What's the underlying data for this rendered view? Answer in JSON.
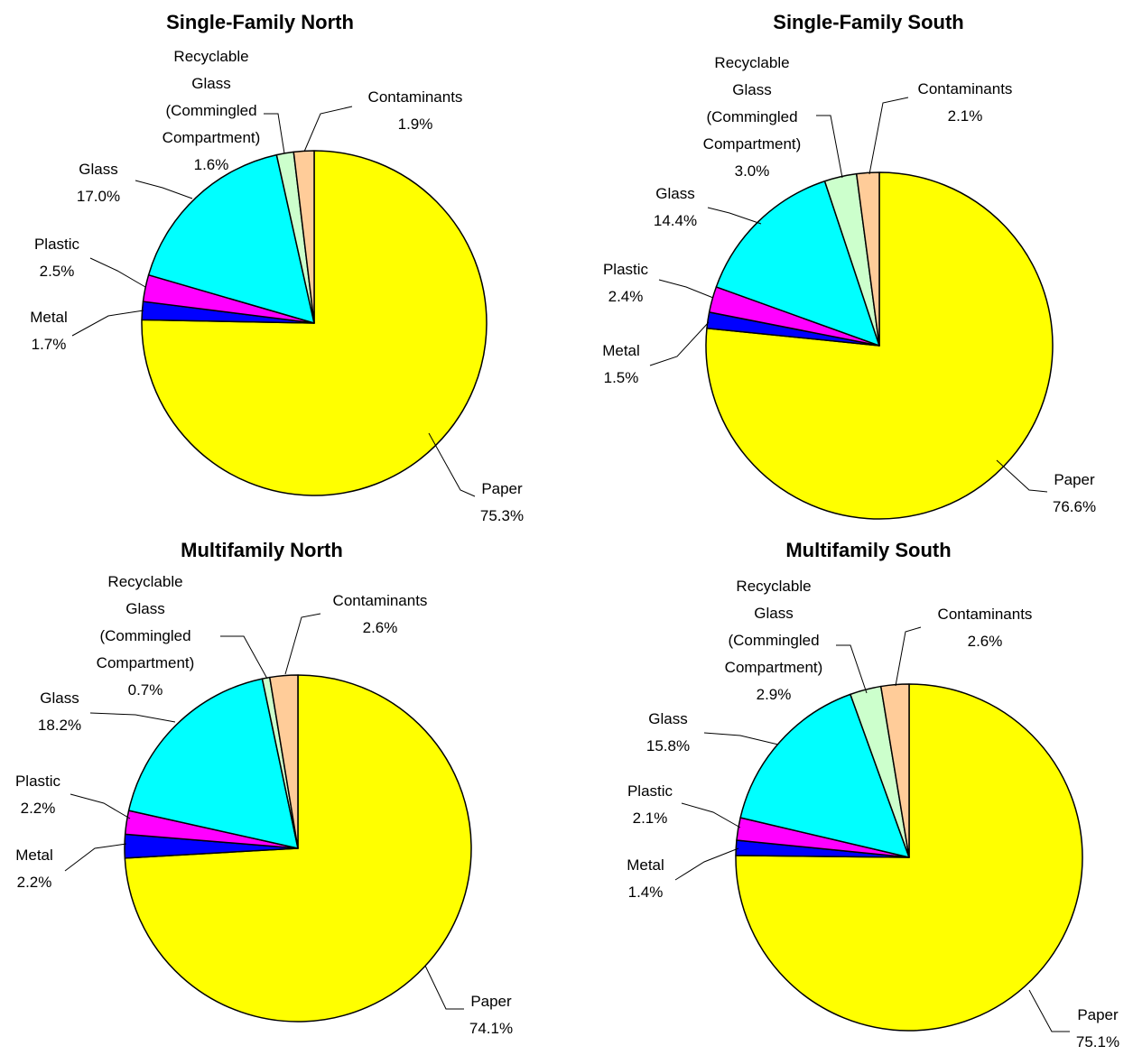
{
  "chart_data": [
    {
      "type": "pie",
      "title": "Single-Family North",
      "slices": [
        {
          "label": "Paper",
          "value": 75.3,
          "value_label": "75.3%"
        },
        {
          "label": "Metal",
          "value": 1.7,
          "value_label": "1.7%"
        },
        {
          "label": "Plastic",
          "value": 2.5,
          "value_label": "2.5%"
        },
        {
          "label": "Glass",
          "value": 17.0,
          "value_label": "17.0%"
        },
        {
          "label": "Recyclable Glass (Commingled Compartment)",
          "value": 1.6,
          "value_label": "1.6%"
        },
        {
          "label": "Contaminants",
          "value": 1.9,
          "value_label": "1.9%"
        }
      ]
    },
    {
      "type": "pie",
      "title": "Single-Family South",
      "slices": [
        {
          "label": "Paper",
          "value": 76.6,
          "value_label": "76.6%"
        },
        {
          "label": "Metal",
          "value": 1.5,
          "value_label": "1.5%"
        },
        {
          "label": "Plastic",
          "value": 2.4,
          "value_label": "2.4%"
        },
        {
          "label": "Glass",
          "value": 14.4,
          "value_label": "14.4%"
        },
        {
          "label": "Recyclable Glass (Commingled Compartment)",
          "value": 3.0,
          "value_label": "3.0%"
        },
        {
          "label": "Contaminants",
          "value": 2.1,
          "value_label": "2.1%"
        }
      ]
    },
    {
      "type": "pie",
      "title": "Multifamily North",
      "slices": [
        {
          "label": "Paper",
          "value": 74.1,
          "value_label": "74.1%"
        },
        {
          "label": "Metal",
          "value": 2.2,
          "value_label": "2.2%"
        },
        {
          "label": "Plastic",
          "value": 2.2,
          "value_label": "2.2%"
        },
        {
          "label": "Glass",
          "value": 18.2,
          "value_label": "18.2%"
        },
        {
          "label": "Recyclable Glass (Commingled Compartment)",
          "value": 0.7,
          "value_label": "0.7%"
        },
        {
          "label": "Contaminants",
          "value": 2.6,
          "value_label": "2.6%"
        }
      ]
    },
    {
      "type": "pie",
      "title": "Multifamily South",
      "slices": [
        {
          "label": "Paper",
          "value": 75.1,
          "value_label": "75.1%"
        },
        {
          "label": "Metal",
          "value": 1.4,
          "value_label": "1.4%"
        },
        {
          "label": "Plastic",
          "value": 2.1,
          "value_label": "2.1%"
        },
        {
          "label": "Glass",
          "value": 15.8,
          "value_label": "15.8%"
        },
        {
          "label": "Recyclable Glass (Commingled Compartment)",
          "value": 2.9,
          "value_label": "2.9%"
        },
        {
          "label": "Contaminants",
          "value": 2.6,
          "value_label": "2.6%"
        }
      ]
    }
  ],
  "colors": {
    "Paper": "#ffff00",
    "Metal": "#0000ff",
    "Plastic": "#ff00ff",
    "Glass": "#00ffff",
    "Recyclable Glass (Commingled Compartment)": "#ccffcc",
    "Contaminants": "#ffcc99"
  },
  "label_lines": {
    "Recyclable Glass (Commingled Compartment)": [
      "Recyclable",
      "Glass",
      "(Commingled",
      "Compartment)"
    ]
  }
}
